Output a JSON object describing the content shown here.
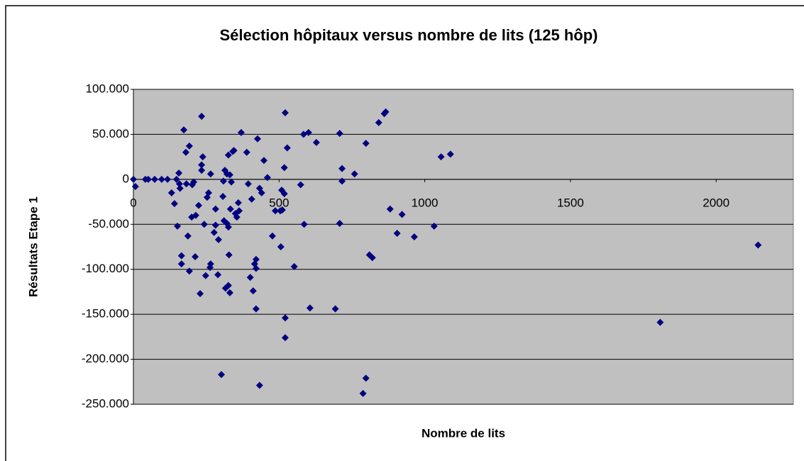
{
  "chart_data": {
    "type": "scatter",
    "title": "Sélection hôpitaux versus nombre de lits (125 hôp)",
    "x_label": "Nombre de lits",
    "y_label": "Résultats Etape 1",
    "color": "#000080",
    "grid": true,
    "x": [
      0,
      7,
      41,
      51,
      73,
      97,
      117,
      131,
      141,
      148,
      151,
      156,
      158,
      160,
      165,
      165,
      173,
      180,
      182,
      187,
      192,
      192,
      200,
      202,
      207,
      212,
      214,
      224,
      229,
      234,
      234,
      234,
      238,
      243,
      248,
      253,
      258,
      263,
      265,
      265,
      277,
      282,
      282,
      290,
      292,
      302,
      307,
      309,
      311,
      314,
      316,
      321,
      321,
      326,
      326,
      328,
      331,
      326,
      331,
      333,
      336,
      341,
      345,
      350,
      355,
      360,
      363,
      370,
      389,
      394,
      401,
      406,
      411,
      416,
      421,
      421,
      421,
      426,
      433,
      440,
      433,
      448,
      460,
      477,
      487,
      504,
      506,
      509,
      511,
      518,
      518,
      521,
      521,
      521,
      528,
      552,
      574,
      586,
      584,
      601,
      606,
      628,
      693,
      708,
      708,
      716,
      716,
      759,
      788,
      798,
      798,
      810,
      820,
      881,
      842,
      861,
      866,
      905,
      922,
      964,
      1032,
      1056,
      1088,
      1808,
      2144
    ],
    "values": [
      0,
      -8000,
      0,
      0,
      0,
      0,
      0,
      -15000,
      -27000,
      0,
      -52000,
      7000,
      -5000,
      -10000,
      -85000,
      -94000,
      55000,
      30000,
      -5000,
      -63000,
      37000,
      -102000,
      -42000,
      -6000,
      -3000,
      -86000,
      -40000,
      -29000,
      -127000,
      70000,
      16000,
      10000,
      25000,
      -50000,
      -107000,
      -20000,
      -15000,
      -98000,
      -94000,
      6000,
      -59000,
      -51000,
      -33000,
      -106000,
      -67000,
      -217000,
      -19000,
      -2000,
      -46000,
      10000,
      -121000,
      6000,
      -49000,
      -118000,
      -53000,
      -84000,
      -126000,
      27000,
      5000,
      -33000,
      -3000,
      31000,
      32000,
      -38000,
      -42000,
      -26000,
      -35000,
      52000,
      30000,
      -5000,
      -109000,
      -22000,
      -124000,
      -94000,
      -99000,
      -89000,
      -144000,
      45000,
      -10000,
      -15000,
      -229000,
      21000,
      2000,
      -63000,
      -35000,
      -35000,
      -75000,
      -12000,
      -34000,
      -16000,
      13000,
      74000,
      -176000,
      -154000,
      35000,
      -97000,
      -6000,
      -50000,
      50000,
      52000,
      -143000,
      41000,
      -144000,
      51000,
      -49000,
      12000,
      -2000,
      6000,
      -238000,
      -221000,
      40000,
      -84000,
      -87000,
      -33000,
      63000,
      73000,
      75000,
      -60000,
      -39000,
      -64000,
      -52000,
      25000,
      28000,
      -159000,
      -73000
    ],
    "xlim": [
      0,
      2265
    ],
    "ylim": [
      -250000,
      100000
    ],
    "xticks": [
      0,
      500,
      1000,
      1500,
      2000
    ],
    "yticks": [
      {
        "value": 100000,
        "label": "100.000"
      },
      {
        "value": 50000,
        "label": "50.000"
      },
      0,
      {
        "value": -50000,
        "label": "-50.000"
      },
      {
        "value": -100000,
        "label": "-100.000"
      },
      {
        "value": -150000,
        "label": "-150.000"
      },
      {
        "value": -200000,
        "label": "-200.000"
      },
      {
        "value": -250000,
        "label": "-250.000"
      }
    ]
  }
}
